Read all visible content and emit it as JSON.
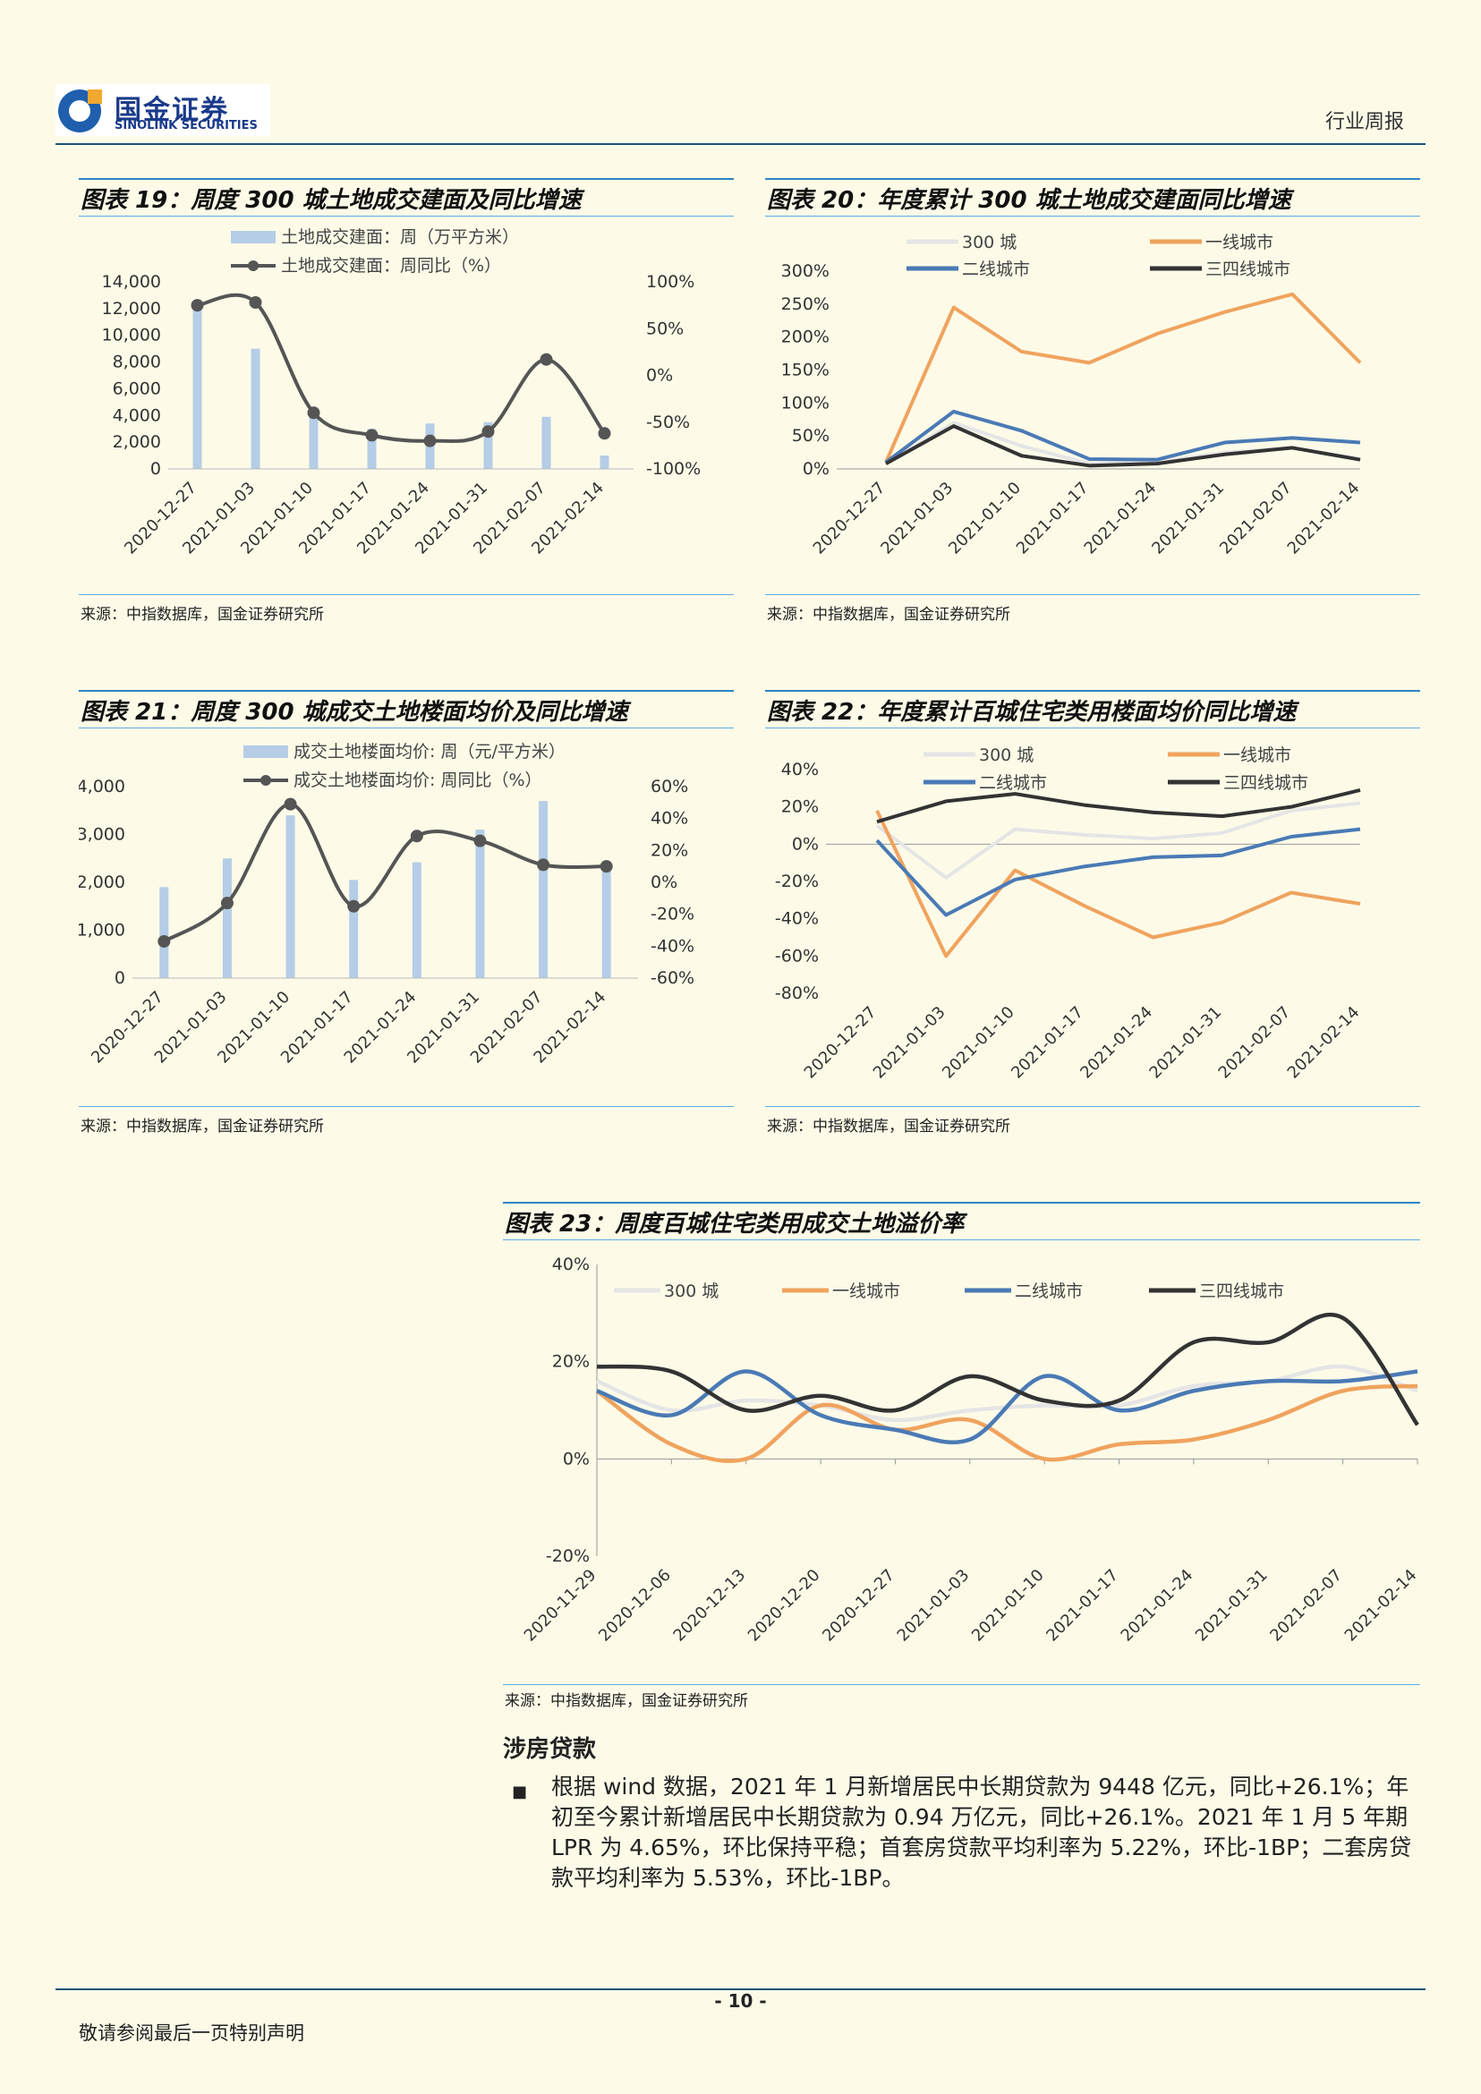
{
  "header": {
    "logo_cn": "国金证券",
    "logo_en": "SINOLINK SECURITIES",
    "section": "行业周报"
  },
  "colors": {
    "c300": "#e5e5e5",
    "c1": "#f0a35e",
    "c2": "#4a7ab5",
    "c34": "#333333",
    "bar": "#b5cde6",
    "line": "#555555"
  },
  "chart_data": [
    {
      "id": "fig19",
      "title": "图表 19：周度 300 城土地成交建面及同比增速",
      "type": "bar",
      "categories": [
        "2020-12-27",
        "2021-01-03",
        "2021-01-10",
        "2021-01-17",
        "2021-01-24",
        "2021-01-31",
        "2021-02-07",
        "2021-02-14"
      ],
      "series": [
        {
          "name": "土地成交建面：周（万平方米）",
          "type": "bar",
          "axis": "left",
          "values": [
            12500,
            9000,
            4100,
            3000,
            3400,
            3500,
            3900,
            1000
          ]
        },
        {
          "name": "土地成交建面：周同比（%）",
          "type": "line",
          "axis": "right",
          "values": [
            75,
            78,
            -40,
            -64,
            -70,
            -60,
            17,
            -62
          ]
        }
      ],
      "y_left": {
        "ticks": [
          "14,000",
          "12,000",
          "10,000",
          "8,000",
          "6,000",
          "4,000",
          "2,000",
          "0"
        ],
        "range": [
          0,
          14000
        ]
      },
      "y_right": {
        "ticks": [
          "100%",
          "50%",
          "0%",
          "-50%",
          "-100%"
        ],
        "range": [
          -100,
          100
        ]
      },
      "source": "来源：中指数据库，国金证券研究所"
    },
    {
      "id": "fig20",
      "title": "图表 20：年度累计 300 城土地成交建面同比增速",
      "type": "line",
      "categories": [
        "2020-12-27",
        "2021-01-03",
        "2021-01-10",
        "2021-01-17",
        "2021-01-24",
        "2021-01-31",
        "2021-02-07",
        "2021-02-14"
      ],
      "series": [
        {
          "name": "300 城",
          "values": [
            8,
            70,
            35,
            8,
            10,
            25,
            32,
            15
          ]
        },
        {
          "name": "一线城市",
          "values": [
            10,
            245,
            178,
            161,
            205,
            238,
            265,
            161
          ]
        },
        {
          "name": "二线城市",
          "values": [
            10,
            87,
            58,
            15,
            14,
            40,
            47,
            40
          ]
        },
        {
          "name": "三四线城市",
          "values": [
            8,
            65,
            20,
            5,
            8,
            22,
            32,
            14
          ]
        }
      ],
      "y": {
        "ticks": [
          "300%",
          "250%",
          "200%",
          "150%",
          "100%",
          "50%",
          "0%"
        ],
        "range": [
          0,
          300
        ]
      },
      "source": "来源：中指数据库，国金证券研究所"
    },
    {
      "id": "fig21",
      "title": "图表 21：周度 300 城成交土地楼面均价及同比增速",
      "type": "bar",
      "categories": [
        "2020-12-27",
        "2021-01-03",
        "2021-01-10",
        "2021-01-17",
        "2021-01-24",
        "2021-01-31",
        "2021-02-07",
        "2021-02-14"
      ],
      "series": [
        {
          "name": "成交土地楼面均价: 周（元/平方米）",
          "type": "bar",
          "axis": "left",
          "values": [
            1900,
            2500,
            3400,
            2050,
            2420,
            3100,
            3700,
            2300
          ]
        },
        {
          "name": "成交土地楼面均价: 周同比（%）",
          "type": "line",
          "axis": "right",
          "values": [
            -37,
            -13,
            49,
            -15,
            29,
            26,
            11,
            10
          ]
        }
      ],
      "y_left": {
        "ticks": [
          "4,000",
          "3,000",
          "2,000",
          "1,000",
          "0"
        ],
        "range": [
          0,
          4000
        ]
      },
      "y_right": {
        "ticks": [
          "60%",
          "40%",
          "20%",
          "0%",
          "-20%",
          "-40%",
          "-60%"
        ],
        "range": [
          -60,
          60
        ]
      },
      "source": "来源：中指数据库，国金证券研究所"
    },
    {
      "id": "fig22",
      "title": "图表 22：年度累计百城住宅类用楼面均价同比增速",
      "type": "line",
      "categories": [
        "2020-12-27",
        "2021-01-03",
        "2021-01-10",
        "2021-01-17",
        "2021-01-24",
        "2021-01-31",
        "2021-02-07",
        "2021-02-14"
      ],
      "series": [
        {
          "name": "300 城",
          "values": [
            10,
            -18,
            8,
            5,
            3,
            6,
            18,
            22
          ]
        },
        {
          "name": "一线城市",
          "values": [
            18,
            -60,
            -14,
            -33,
            -50,
            -42,
            -26,
            -32
          ]
        },
        {
          "name": "二线城市",
          "values": [
            2,
            -38,
            -19,
            -12,
            -7,
            -6,
            4,
            8
          ]
        },
        {
          "name": "三四线城市",
          "values": [
            12,
            23,
            27,
            21,
            17,
            15,
            20,
            29
          ]
        }
      ],
      "y": {
        "ticks": [
          "40%",
          "20%",
          "0%",
          "-20%",
          "-40%",
          "-60%",
          "-80%"
        ],
        "range": [
          -80,
          40
        ]
      },
      "source": "来源：中指数据库，国金证券研究所"
    },
    {
      "id": "fig23",
      "title": "图表 23：周度百城住宅类用成交土地溢价率",
      "type": "line",
      "categories": [
        "2020-11-29",
        "2020-12-06",
        "2020-12-13",
        "2020-12-20",
        "2020-12-27",
        "2021-01-03",
        "2021-01-10",
        "2021-01-17",
        "2021-01-24",
        "2021-01-31",
        "2021-02-07",
        "2021-02-14"
      ],
      "series": [
        {
          "name": "300 城",
          "values": [
            16,
            10,
            12,
            11,
            8,
            10,
            11,
            11,
            15,
            16,
            19,
            14
          ]
        },
        {
          "name": "一线城市",
          "values": [
            14,
            3,
            0,
            11,
            6,
            8,
            0,
            3,
            4,
            8,
            14,
            15
          ]
        },
        {
          "name": "二线城市",
          "values": [
            14,
            9,
            18,
            9,
            6,
            4,
            17,
            10,
            14,
            16,
            16,
            18
          ]
        },
        {
          "name": "三四线城市",
          "values": [
            19,
            18,
            10,
            13,
            10,
            17,
            12,
            12,
            24,
            24,
            29,
            7
          ]
        }
      ],
      "y": {
        "ticks": [
          "40%",
          "20%",
          "0%",
          "-20%"
        ],
        "range": [
          -20,
          40
        ]
      },
      "source": "来源：中指数据库，国金证券研究所"
    }
  ],
  "section": {
    "title": "涉房贷款",
    "bullet": "■",
    "text": "根据 wind 数据，2021 年 1 月新增居民中长期贷款为 9448 亿元，同比+26.1%；年初至今累计新增居民中长期贷款为 0.94 万亿元，同比+26.1%。2021 年 1 月 5 年期 LPR 为 4.65%，环比保持平稳；首套房贷款平均利率为 5.22%，环比-1BP；二套房贷款平均利率为 5.53%，环比-1BP。"
  },
  "footer": {
    "page": "- 10 -",
    "note": "敬请参阅最后一页特别声明"
  }
}
